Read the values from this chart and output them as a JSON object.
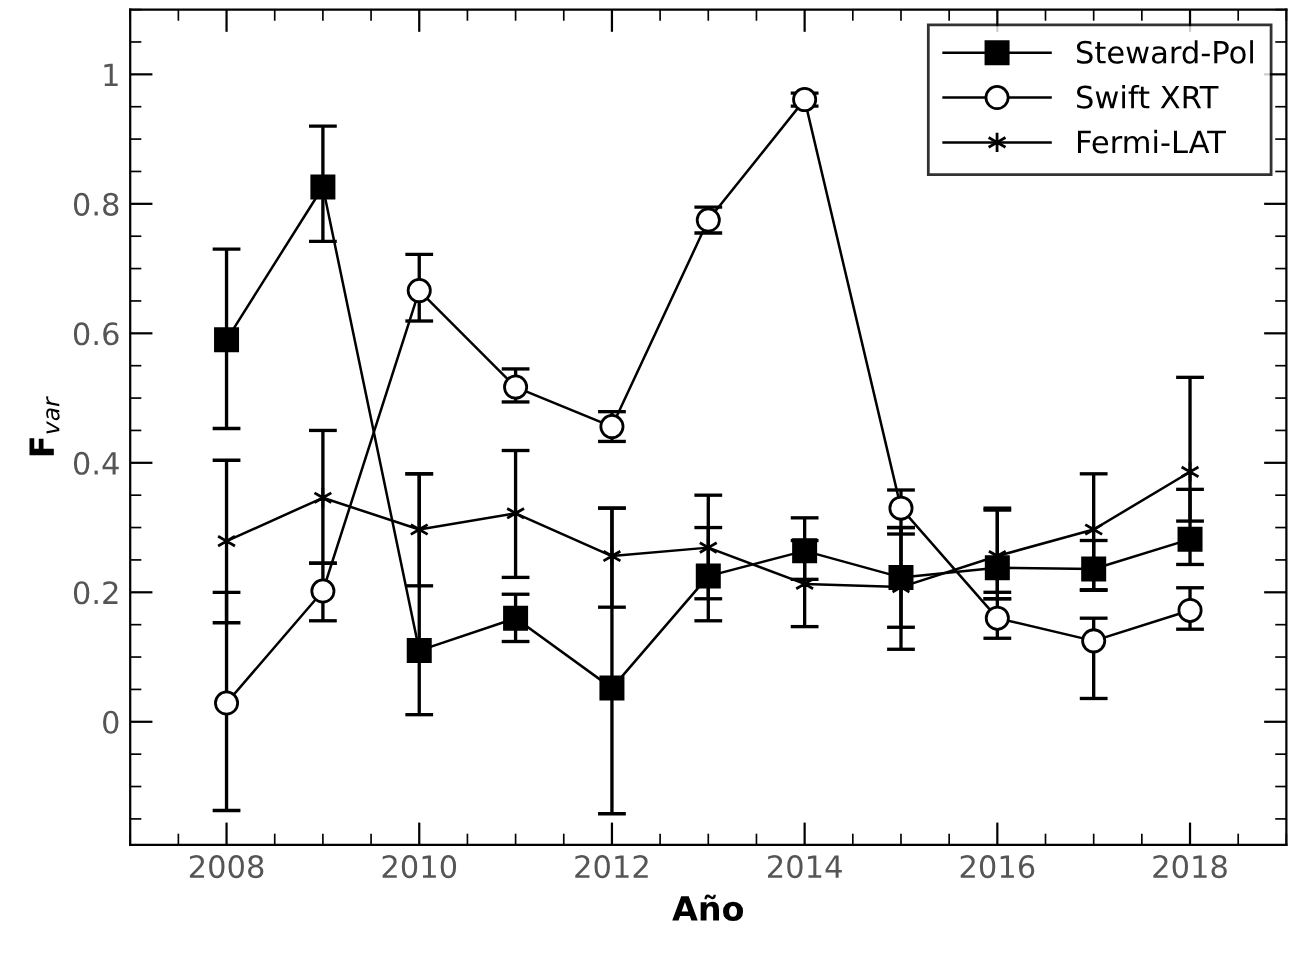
{
  "chart_data": {
    "type": "line",
    "xlabel": "Año",
    "ylabel": "F$_{var}$",
    "xlim": [
      2007,
      2019
    ],
    "ylim": [
      -0.19,
      1.1
    ],
    "xticks": [
      2008,
      2010,
      2012,
      2014,
      2016,
      2018
    ],
    "yticks": [
      0,
      0.2,
      0.4,
      0.6,
      0.8,
      1
    ],
    "x": [
      2008,
      2009,
      2010,
      2011,
      2012,
      2013,
      2014,
      2015,
      2016,
      2017,
      2018
    ],
    "legend": "top right",
    "grid": false,
    "series": [
      {
        "name": "Steward-Pol",
        "color": "#000000",
        "marker": "square",
        "values": [
          0.59,
          0.826,
          0.11,
          0.16,
          0.052,
          0.225,
          0.264,
          0.223,
          0.238,
          0.236,
          0.282
        ],
        "errors": [
          [
            0.453,
            0.73
          ],
          [
            0.742,
            0.92
          ],
          [
            0.011,
            0.383
          ],
          [
            0.124,
            0.197
          ],
          [
            -0.142,
            0.33
          ],
          [
            0.19,
            0.3
          ],
          [
            0.22,
            0.315
          ],
          [
            0.146,
            0.3
          ],
          [
            0.2,
            0.327
          ],
          [
            0.204,
            0.28
          ],
          [
            0.243,
            0.359
          ]
        ]
      },
      {
        "name": "Swift XRT",
        "color": "#000000",
        "marker": "circle",
        "values": [
          0.029,
          0.202,
          0.666,
          0.517,
          0.456,
          0.775,
          0.961,
          0.33,
          0.16,
          0.125,
          0.172
        ],
        "errors": [
          [
            -0.137,
            0.2
          ],
          [
            0.156,
            0.245
          ],
          [
            0.619,
            0.722
          ],
          [
            0.494,
            0.545
          ],
          [
            0.433,
            0.479
          ],
          [
            0.755,
            0.795
          ],
          [
            0.951,
            0.971
          ],
          [
            0.29,
            0.358
          ],
          [
            0.129,
            0.19
          ],
          [
            0.036,
            0.16
          ],
          [
            0.143,
            0.207
          ]
        ]
      },
      {
        "name": "Fermi-LAT",
        "color": "#000000",
        "marker": "cross",
        "values": [
          0.279,
          0.346,
          0.297,
          0.322,
          0.256,
          0.269,
          0.213,
          0.208,
          0.256,
          0.297,
          0.386
        ],
        "errors": [
          [
            0.153,
            0.404
          ],
          [
            0.245,
            0.45
          ],
          [
            0.21,
            0.383
          ],
          [
            0.223,
            0.419
          ],
          [
            0.177,
            0.33
          ],
          [
            0.156,
            0.35
          ],
          [
            0.147,
            0.28
          ],
          [
            0.112,
            0.3
          ],
          [
            0.19,
            0.33
          ],
          [
            0.203,
            0.383
          ],
          [
            0.31,
            0.532
          ]
        ]
      }
    ]
  }
}
